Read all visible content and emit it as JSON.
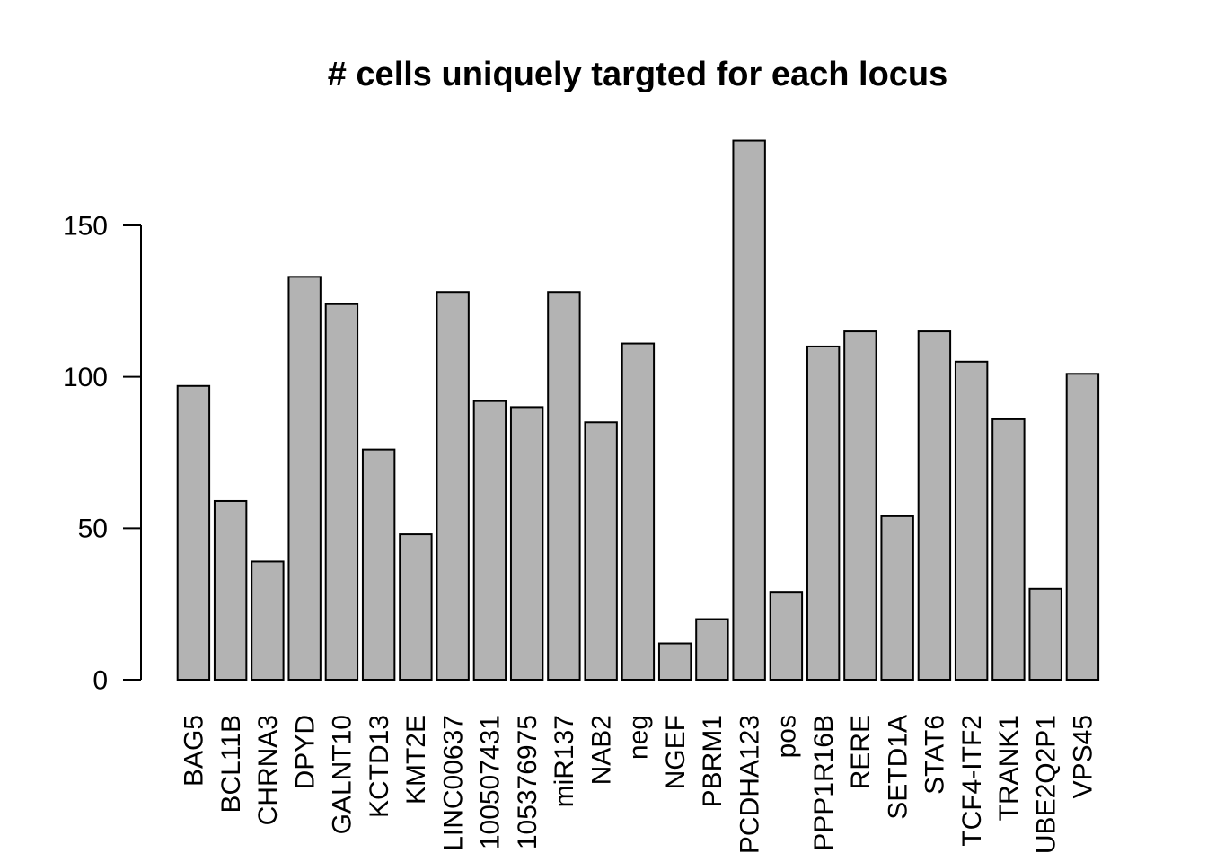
{
  "chart_data": {
    "type": "bar",
    "title": "# cells uniquely targted for each locus",
    "xlabel": "",
    "ylabel": "",
    "categories": [
      "BAG5",
      "BCL11B",
      "CHRNA3",
      "DPYD",
      "GALNT10",
      "KCTD13",
      "KMT2E",
      "LINC00637",
      "100507431",
      "105376975",
      "miR137",
      "NAB2",
      "neg",
      "NGEF",
      "PBRM1",
      "PCDHA123",
      "pos",
      "PPP1R16B",
      "RERE",
      "SETD1A",
      "STAT6",
      "TCF4-ITF2",
      "TRANK1",
      "UBE2Q2P1",
      "VPS45"
    ],
    "values": [
      97,
      59,
      39,
      133,
      124,
      76,
      48,
      128,
      92,
      90,
      128,
      85,
      111,
      12,
      20,
      178,
      29,
      110,
      115,
      54,
      115,
      105,
      86,
      30,
      101
    ],
    "yticks": [
      0,
      50,
      100,
      150
    ],
    "ylim": [
      0,
      178
    ],
    "grid": false,
    "legend_position": "none",
    "x_tick_rotation_degrees": 90,
    "colors": {
      "bar_fill": "#b3b3b3",
      "bar_stroke": "#000000",
      "axis": "#000000",
      "text": "#000000",
      "background": "#ffffff"
    }
  }
}
